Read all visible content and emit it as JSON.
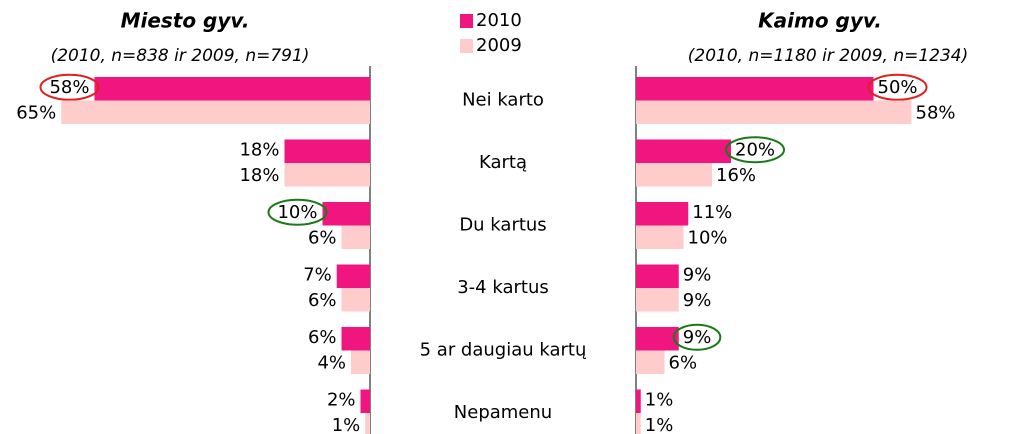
{
  "chart_data": [
    {
      "type": "bar",
      "orientation": "horizontal",
      "title": "Miesto gyv.",
      "subtitle": "(2010, n=838 ir 2009, n=791)",
      "categories": [
        "Nei karto",
        "Kartą",
        "Du kartus",
        "3-4 kartus",
        "5 ar daugiau kartų",
        "Nepamenu"
      ],
      "series": [
        {
          "name": "2010",
          "color": "#f0157f",
          "values": [
            58,
            18,
            10,
            7,
            6,
            2
          ],
          "value_labels": [
            "58%",
            "18%",
            "10%",
            "7%",
            "6%",
            "2%"
          ],
          "circled": [
            "#e02020",
            null,
            "#1a7a1a",
            null,
            null,
            null
          ]
        },
        {
          "name": "2009",
          "color": "#ffcccc",
          "values": [
            65,
            18,
            6,
            6,
            4,
            1
          ],
          "value_labels": [
            "65%",
            "18%",
            "6%",
            "6%",
            "4%",
            "1%"
          ]
        }
      ]
    },
    {
      "type": "bar",
      "orientation": "horizontal",
      "title": "Kaimo gyv.",
      "subtitle": "(2010, n=1180 ir 2009, n=1234)",
      "series": [
        {
          "color": "#f0157f",
          "values": [
            50,
            20,
            11,
            9,
            9,
            1
          ],
          "value_labels": [
            "50%",
            "20%",
            "11%",
            "9%",
            "9%",
            "1%"
          ],
          "circled": [
            "#e02020",
            "#1a7a1a",
            null,
            null,
            "#1a7a1a",
            null
          ]
        },
        {
          "color": "#ffcccc",
          "values": [
            58,
            16,
            10,
            9,
            6,
            1
          ],
          "value_labels": [
            "58%",
            "16%",
            "10%",
            "9%",
            "6%",
            "1%"
          ]
        }
      ]
    }
  ]
}
